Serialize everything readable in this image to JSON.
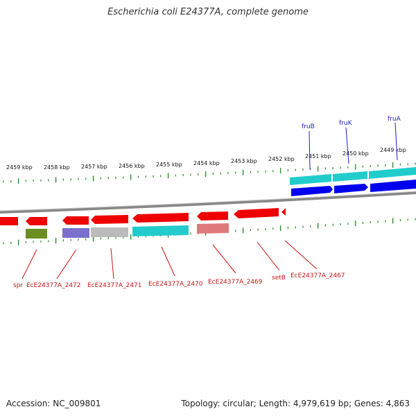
{
  "title": "Escherichia coli E24377A, complete genome",
  "accession": "Accession: NC_009801",
  "summary": "Topology: circular; Length: 4,979,619 bp; Genes: 4,863",
  "colors": {
    "forward_gene": "#0000ee",
    "reverse_gene": "#ee0000",
    "ticks": "#2a8a2a",
    "backbone": "#999999",
    "forward_label": "#1a1acc",
    "reverse_label": "#cc1111",
    "cyan": "#22cccc",
    "green": "#6b8e23",
    "purple": "#7b6fcf",
    "grey": "#bbbbbb",
    "pink": "#e07a7a"
  },
  "kbp_ticks": [
    "2459 kbp",
    "2458 kbp",
    "2457 kbp",
    "2456 kbp",
    "2455 kbp",
    "2454 kbp",
    "2453 kbp",
    "2452 kbp",
    "2451 kbp",
    "2450 kbp",
    "2449 kbp"
  ],
  "forward_genes": [
    "fruB",
    "fruK",
    "fruA"
  ],
  "reverse_genes": [
    "spr",
    "EcE24377A_2472",
    "EcE24377A_2471",
    "EcE24377A_2470",
    "EcE24377A_2469",
    "setB",
    "EcE24377A_2467"
  ]
}
